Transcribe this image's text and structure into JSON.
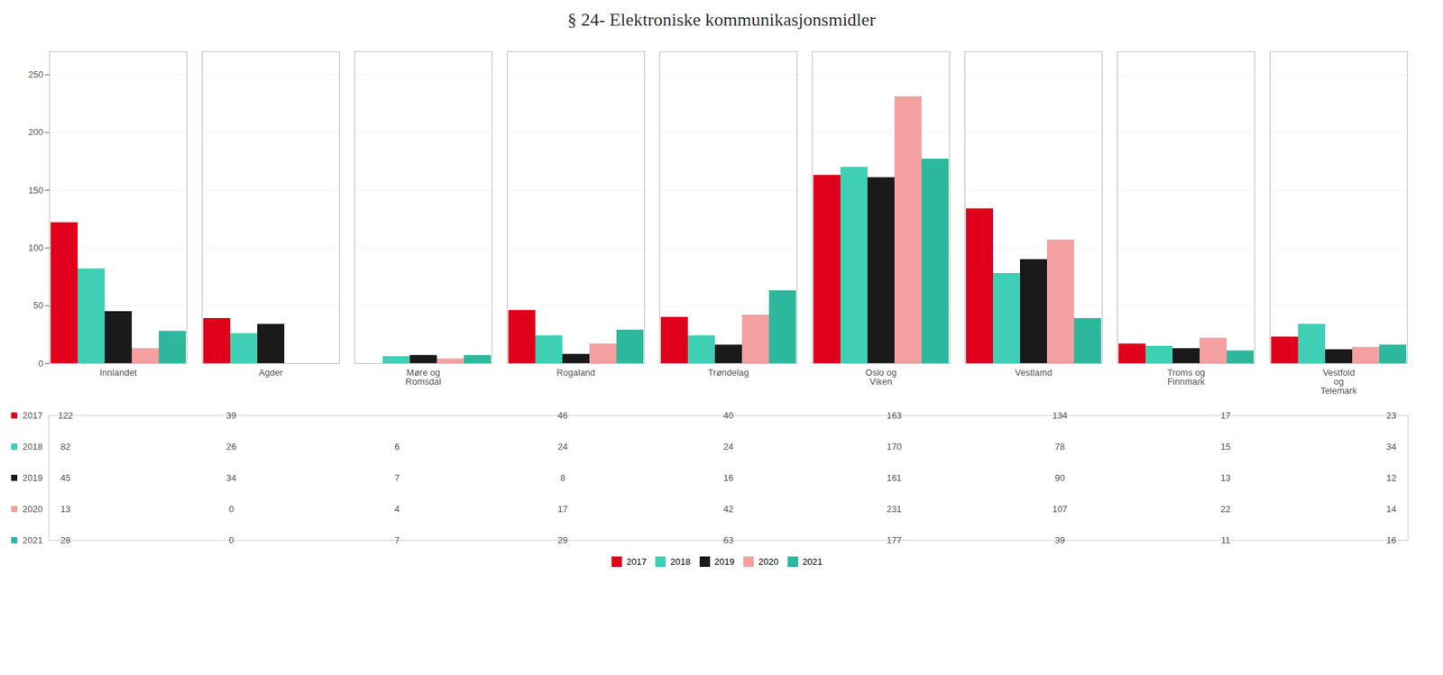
{
  "chart_data": {
    "type": "bar",
    "title": "§ 24- Elektroniske kommunikasjonsmidler",
    "categories": [
      "Innlandet",
      "Agder",
      "Møre og\nRomsdal",
      "Rogaland",
      "Trøndelag",
      "Oslo og\nViken",
      "Vestlamd",
      "Troms og\nFinnmark",
      "Vestfold\nog\nTelemark"
    ],
    "series": [
      {
        "name": "2017",
        "color": "#e0001b",
        "values": [
          122,
          39,
          null,
          46,
          40,
          163,
          134,
          17,
          23
        ]
      },
      {
        "name": "2018",
        "color": "#3ecfb5",
        "values": [
          82,
          26,
          6,
          24,
          24,
          170,
          78,
          15,
          34
        ]
      },
      {
        "name": "2019",
        "color": "#1a1a1a",
        "values": [
          45,
          34,
          7,
          8,
          16,
          161,
          90,
          13,
          12
        ]
      },
      {
        "name": "2020",
        "color": "#f4a0a0",
        "values": [
          13,
          0,
          4,
          17,
          42,
          231,
          107,
          22,
          14
        ]
      },
      {
        "name": "2021",
        "color": "#2db89e",
        "values": [
          28,
          0,
          7,
          29,
          63,
          177,
          39,
          11,
          16
        ]
      }
    ],
    "ylim": [
      0,
      270
    ],
    "yticks": [
      0,
      50,
      100,
      150,
      200,
      250
    ],
    "grid": true,
    "legend": "bottom",
    "data_labels": true
  }
}
